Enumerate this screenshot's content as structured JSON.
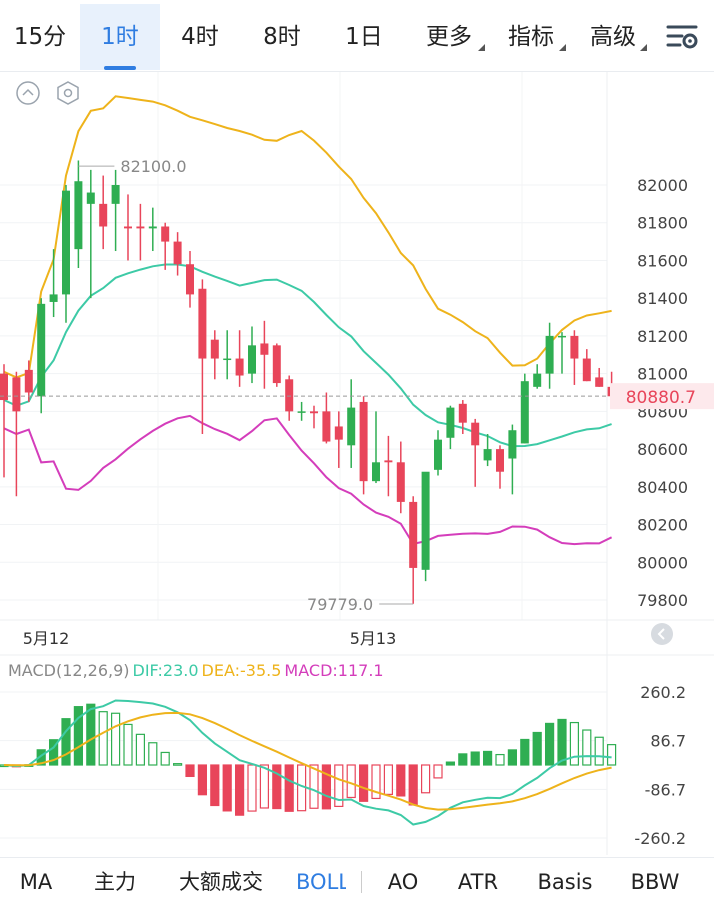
{
  "tabs": {
    "interval_15m": "15分",
    "interval_1h": "1时",
    "interval_4h": "4时",
    "interval_8h": "8时",
    "interval_1d": "1日",
    "more": "更多",
    "indicators": "指标",
    "advanced": "高级"
  },
  "toolbar": {
    "settings_icon": "settings-sliders-icon",
    "collapse_icon": "chevron-up-circle-icon",
    "style_icon": "hexagon-icon"
  },
  "price_axis": {
    "ticks": [
      "82000",
      "81800",
      "81600",
      "81400",
      "81200",
      "81000",
      "80800",
      "80600",
      "80400",
      "80200",
      "80000",
      "79800"
    ]
  },
  "current_price": {
    "value": "80880.7",
    "color": "#e8455a"
  },
  "annotations": {
    "high": "82100.0",
    "low": "79779.0"
  },
  "dates": {
    "d1": "5月12",
    "d2": "5月13"
  },
  "macd": {
    "label": "MACD(12,26,9)",
    "dif": "DIF:23.0",
    "dea": "DEA:-35.5",
    "macd": "MACD:117.1",
    "ticks": [
      "260.2",
      "86.7",
      "-86.7",
      "-260.2"
    ]
  },
  "colors": {
    "up": "#2fae52",
    "down": "#e8455a",
    "boll_upper": "#eeb31b",
    "boll_mid": "#3dcaa6",
    "boll_lower": "#d43dbb",
    "accent": "#2f7de1",
    "dif": "#3dcaa6",
    "dea": "#eeb31b",
    "macd_text": "#d43dbb"
  },
  "bottom_tabs": [
    "MA",
    "主力",
    "大额成交",
    "BOLL",
    "AO",
    "ATR",
    "Basis",
    "BBW"
  ],
  "candles": [
    [
      81000,
      81050,
      80450,
      80860
    ],
    [
      80980,
      81010,
      80350,
      80800
    ],
    [
      81020,
      81070,
      80850,
      80900
    ],
    [
      80880,
      81400,
      80790,
      81370
    ],
    [
      81380,
      81660,
      81300,
      81420
    ],
    [
      81420,
      82000,
      81270,
      81970
    ],
    [
      81660,
      82130,
      81560,
      82020
    ],
    [
      81900,
      82080,
      81400,
      81960
    ],
    [
      81900,
      82050,
      81660,
      81780
    ],
    [
      81900,
      82080,
      81650,
      82000
    ],
    [
      81780,
      81950,
      81600,
      81770
    ],
    [
      81780,
      81900,
      81600,
      81770
    ],
    [
      81770,
      81880,
      81650,
      81780
    ],
    [
      81780,
      81800,
      81550,
      81700
    ],
    [
      81700,
      81750,
      81520,
      81580
    ],
    [
      81580,
      81650,
      81350,
      81420
    ],
    [
      81450,
      81500,
      80680,
      81080
    ],
    [
      81180,
      81230,
      80970,
      81080
    ],
    [
      81080,
      81230,
      80970,
      81080
    ],
    [
      81080,
      81230,
      80930,
      80990
    ],
    [
      81000,
      81250,
      80950,
      81150
    ],
    [
      81160,
      81280,
      80920,
      81100
    ],
    [
      81150,
      81160,
      80930,
      80950
    ],
    [
      80970,
      80990,
      80750,
      80800
    ],
    [
      80800,
      80850,
      80750,
      80800
    ],
    [
      80800,
      80830,
      80710,
      80790
    ],
    [
      80800,
      80900,
      80630,
      80640
    ],
    [
      80720,
      80800,
      80500,
      80650
    ],
    [
      80620,
      80970,
      80500,
      80820
    ],
    [
      80850,
      80880,
      80360,
      80430
    ],
    [
      80430,
      80800,
      80420,
      80530
    ],
    [
      80540,
      80670,
      80350,
      80530
    ],
    [
      80530,
      80640,
      80260,
      80320
    ],
    [
      80320,
      80350,
      79780,
      79970
    ],
    [
      79960,
      80470,
      79900,
      80480
    ],
    [
      80490,
      80700,
      80460,
      80650
    ],
    [
      80660,
      80830,
      80600,
      80820
    ],
    [
      80840,
      80860,
      80680,
      80740
    ],
    [
      80740,
      80760,
      80400,
      80620
    ],
    [
      80540,
      80680,
      80510,
      80600
    ],
    [
      80600,
      80620,
      80390,
      80480
    ],
    [
      80550,
      80730,
      80360,
      80700
    ],
    [
      80630,
      81000,
      80630,
      80960
    ],
    [
      80930,
      81050,
      80920,
      81000
    ],
    [
      81000,
      81270,
      80920,
      81200
    ],
    [
      81200,
      81220,
      81000,
      81200
    ],
    [
      81200,
      81230,
      80940,
      81080
    ],
    [
      81080,
      81130,
      80960,
      80960
    ],
    [
      80980,
      81030,
      80930,
      80930
    ],
    [
      80930,
      81010,
      80880,
      80880
    ]
  ]
}
